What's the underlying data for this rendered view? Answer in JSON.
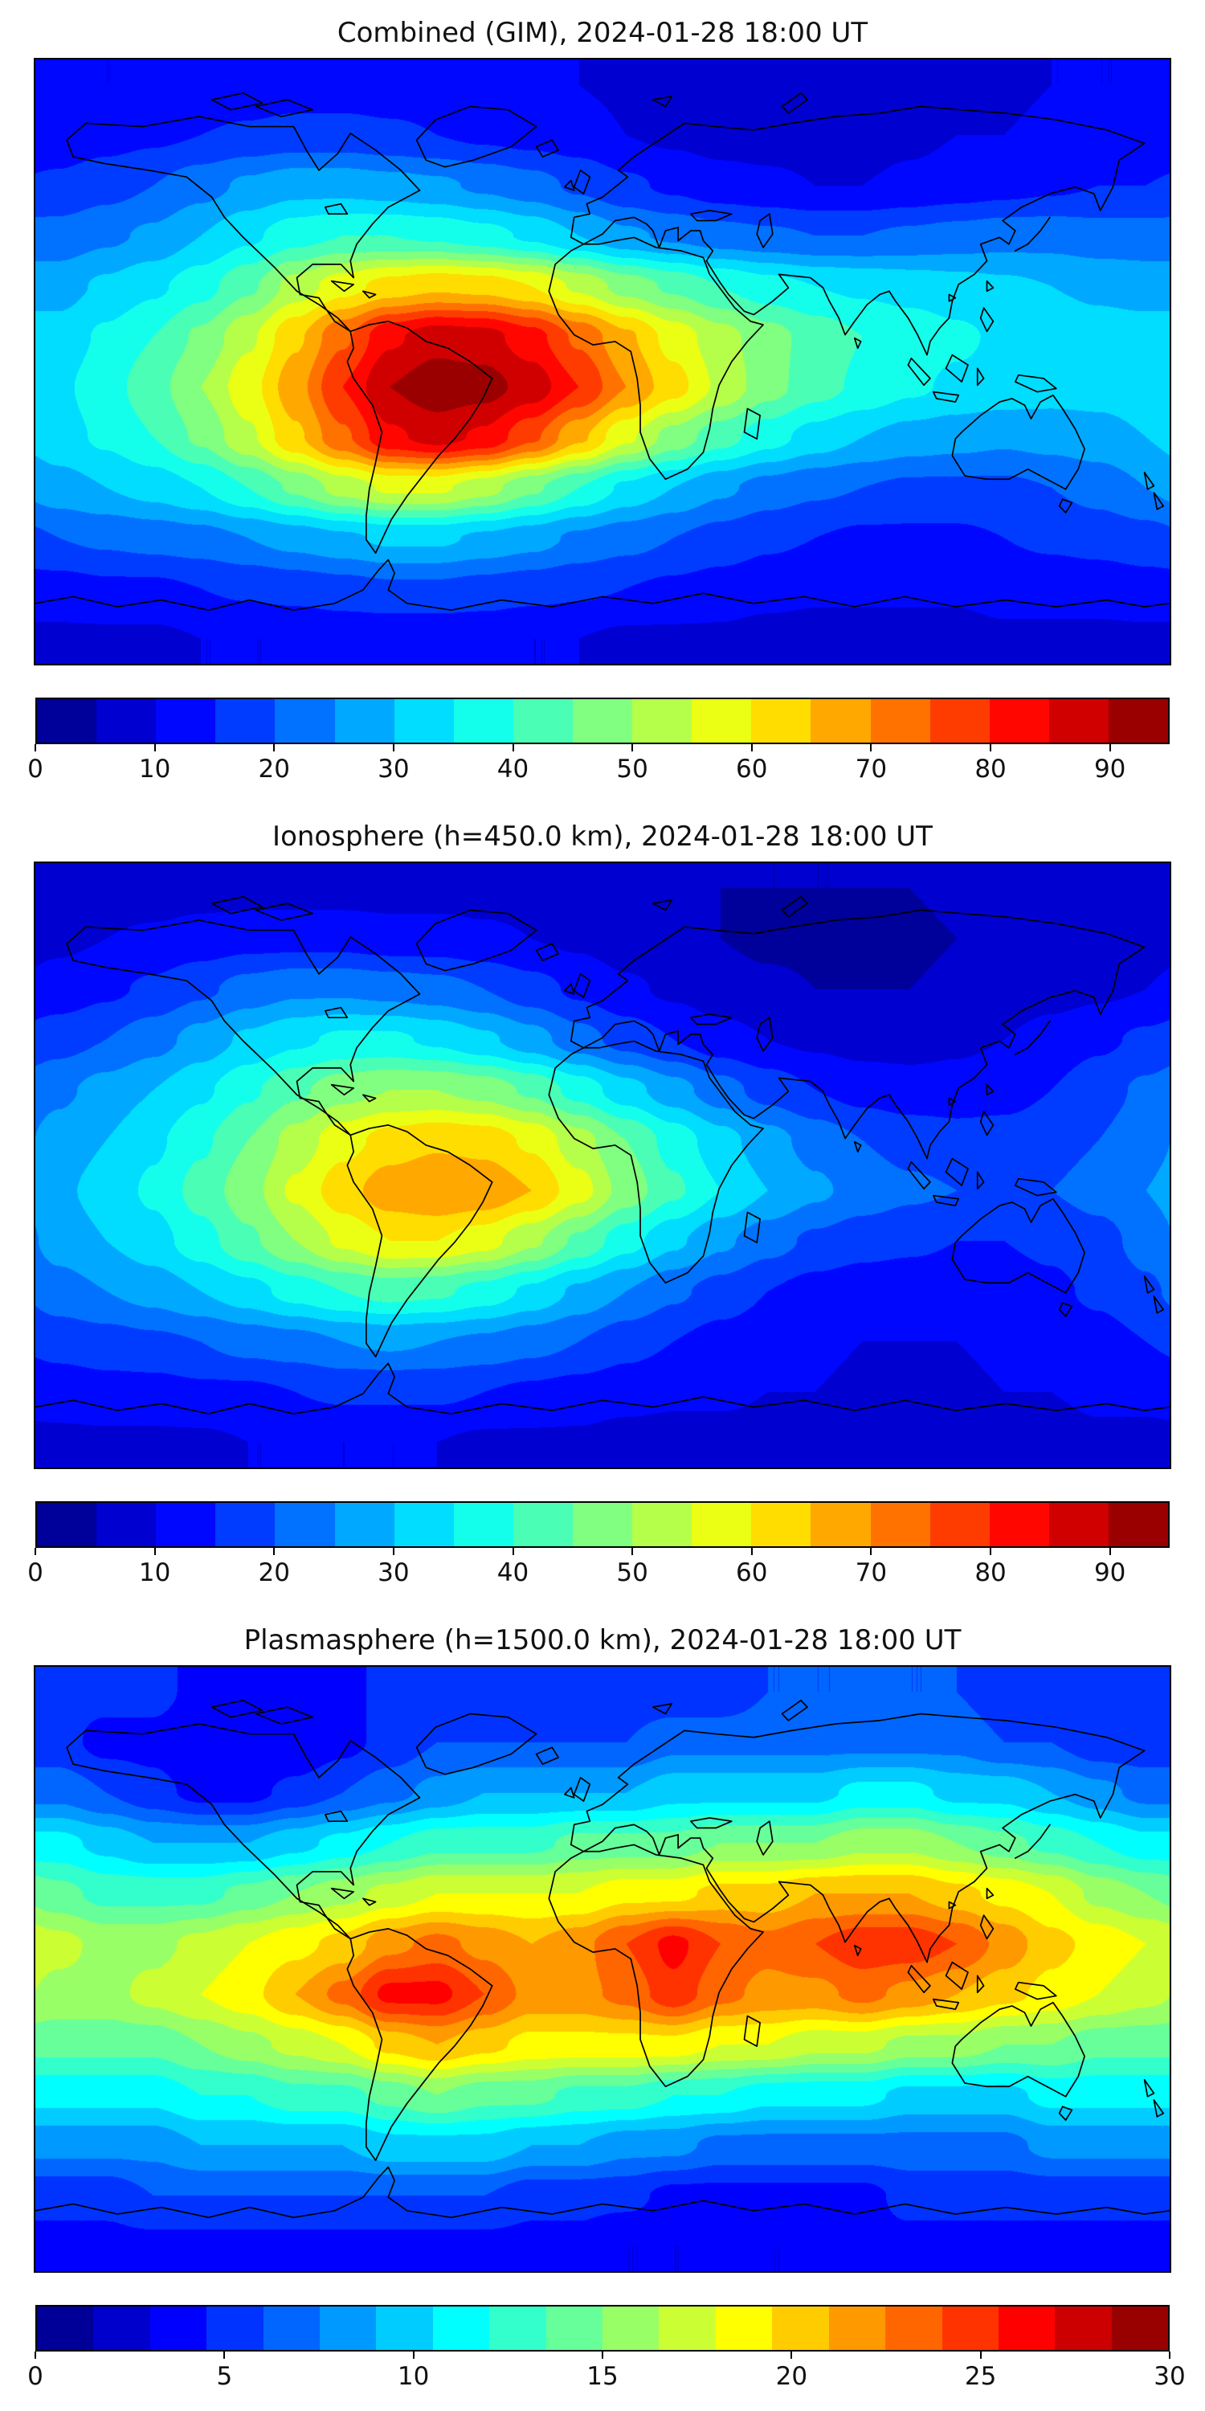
{
  "chart_data": [
    {
      "type": "heatmap",
      "title": "Combined (GIM), 2024-01-28 18:00 UT",
      "projection": "equirectangular",
      "lon_range": [
        -180,
        180
      ],
      "lat_range": [
        -90,
        90
      ],
      "colormap": "jet",
      "levels": {
        "min": 0,
        "max": 95,
        "step": 5
      },
      "colorbar_ticks": [
        0,
        10,
        20,
        30,
        40,
        50,
        60,
        70,
        80,
        90
      ],
      "colorbar_position": "bottom",
      "grid": {
        "lons": [
          -172.5,
          -157.5,
          -142.5,
          -127.5,
          -112.5,
          -97.5,
          -82.5,
          -67.5,
          -52.5,
          -37.5,
          -22.5,
          -7.5,
          7.5,
          22.5,
          37.5,
          52.5,
          67.5,
          82.5,
          97.5,
          112.5,
          127.5,
          142.5,
          157.5,
          172.5
        ],
        "lats": [
          82.5,
          67.5,
          52.5,
          37.5,
          22.5,
          7.5,
          -7.5,
          -22.5,
          -37.5,
          -52.5,
          -67.5,
          -82.5
        ],
        "values": [
          [
            10,
            10,
            10,
            10,
            11,
            12,
            12,
            12,
            12,
            12,
            11,
            10,
            9,
            8,
            8,
            8,
            8,
            8,
            9,
            9,
            9,
            10,
            10,
            10
          ],
          [
            12,
            13,
            14,
            15,
            16,
            17,
            17,
            16,
            15,
            14,
            13,
            12,
            10,
            9,
            8,
            8,
            8,
            8,
            9,
            10,
            10,
            11,
            11,
            12
          ],
          [
            16,
            18,
            20,
            23,
            26,
            28,
            28,
            27,
            26,
            24,
            22,
            19,
            16,
            14,
            12,
            11,
            10,
            10,
            11,
            12,
            13,
            14,
            15,
            15
          ],
          [
            22,
            24,
            26,
            30,
            34,
            38,
            40,
            40,
            39,
            37,
            34,
            30,
            26,
            24,
            22,
            21,
            20,
            20,
            21,
            22,
            23,
            23,
            22,
            22
          ],
          [
            28,
            31,
            34,
            38,
            44,
            52,
            58,
            62,
            64,
            63,
            60,
            54,
            48,
            44,
            40,
            37,
            35,
            34,
            33,
            32,
            31,
            30,
            29,
            28
          ],
          [
            32,
            36,
            40,
            46,
            54,
            64,
            74,
            84,
            88,
            87,
            82,
            74,
            66,
            58,
            52,
            47,
            43,
            40,
            38,
            36,
            34,
            33,
            32,
            32
          ],
          [
            34,
            38,
            43,
            50,
            58,
            68,
            80,
            90,
            93,
            92,
            88,
            80,
            70,
            62,
            54,
            47,
            42,
            39,
            36,
            34,
            33,
            32,
            32,
            33
          ],
          [
            33,
            36,
            40,
            46,
            54,
            64,
            74,
            84,
            87,
            84,
            76,
            66,
            56,
            48,
            42,
            37,
            33,
            30,
            28,
            27,
            26,
            27,
            28,
            30
          ],
          [
            28,
            30,
            32,
            35,
            40,
            46,
            52,
            56,
            56,
            52,
            46,
            40,
            34,
            30,
            26,
            23,
            21,
            20,
            19,
            19,
            19,
            20,
            22,
            25
          ],
          [
            20,
            21,
            22,
            23,
            25,
            27,
            29,
            31,
            31,
            29,
            27,
            24,
            22,
            20,
            18,
            16,
            15,
            14,
            14,
            14,
            15,
            16,
            17,
            18
          ],
          [
            13,
            14,
            14,
            15,
            16,
            17,
            18,
            19,
            19,
            18,
            17,
            16,
            15,
            14,
            13,
            12,
            11,
            11,
            11,
            11,
            12,
            12,
            12,
            13
          ],
          [
            9,
            9,
            9,
            10,
            10,
            10,
            11,
            11,
            11,
            11,
            10,
            10,
            9,
            9,
            9,
            8,
            8,
            8,
            8,
            8,
            9,
            9,
            9,
            9
          ]
        ]
      }
    },
    {
      "type": "heatmap",
      "title": "Ionosphere (h=450.0 km), 2024-01-28 18:00 UT",
      "projection": "equirectangular",
      "lon_range": [
        -180,
        180
      ],
      "lat_range": [
        -90,
        90
      ],
      "colormap": "jet",
      "levels": {
        "min": 0,
        "max": 95,
        "step": 5
      },
      "colorbar_ticks": [
        0,
        10,
        20,
        30,
        40,
        50,
        60,
        70,
        80,
        90
      ],
      "colorbar_position": "bottom",
      "grid": {
        "lons": [
          -172.5,
          -157.5,
          -142.5,
          -127.5,
          -112.5,
          -97.5,
          -82.5,
          -67.5,
          -52.5,
          -37.5,
          -22.5,
          -7.5,
          7.5,
          22.5,
          37.5,
          52.5,
          67.5,
          82.5,
          97.5,
          112.5,
          127.5,
          142.5,
          157.5,
          172.5
        ],
        "lats": [
          82.5,
          67.5,
          52.5,
          37.5,
          22.5,
          7.5,
          -7.5,
          -22.5,
          -37.5,
          -52.5,
          -67.5,
          -82.5
        ],
        "values": [
          [
            7,
            7,
            7,
            8,
            8,
            8,
            8,
            8,
            8,
            8,
            8,
            7,
            6,
            6,
            5,
            5,
            5,
            5,
            5,
            6,
            6,
            6,
            7,
            7
          ],
          [
            9,
            10,
            11,
            12,
            13,
            13,
            13,
            12,
            12,
            11,
            10,
            9,
            7,
            6,
            5,
            4,
            4,
            4,
            4,
            5,
            5,
            6,
            7,
            8
          ],
          [
            12,
            14,
            16,
            19,
            22,
            24,
            24,
            23,
            22,
            20,
            17,
            14,
            11,
            9,
            7,
            6,
            5,
            5,
            5,
            6,
            7,
            8,
            9,
            10
          ],
          [
            18,
            20,
            23,
            27,
            31,
            34,
            36,
            36,
            34,
            31,
            27,
            22,
            18,
            15,
            12,
            10,
            9,
            8,
            8,
            9,
            10,
            12,
            14,
            16
          ],
          [
            24,
            27,
            30,
            34,
            39,
            44,
            48,
            50,
            50,
            48,
            44,
            38,
            32,
            27,
            22,
            18,
            15,
            13,
            12,
            12,
            13,
            15,
            18,
            21
          ],
          [
            27,
            30,
            34,
            39,
            45,
            52,
            58,
            62,
            64,
            63,
            59,
            52,
            45,
            38,
            32,
            27,
            23,
            20,
            18,
            17,
            17,
            18,
            20,
            23
          ],
          [
            29,
            32,
            36,
            42,
            48,
            56,
            63,
            68,
            70,
            69,
            65,
            57,
            48,
            41,
            35,
            30,
            26,
            23,
            21,
            20,
            19,
            20,
            22,
            25
          ],
          [
            27,
            30,
            33,
            38,
            44,
            50,
            56,
            60,
            60,
            57,
            51,
            44,
            37,
            31,
            26,
            22,
            19,
            17,
            16,
            15,
            15,
            16,
            18,
            22
          ],
          [
            23,
            25,
            27,
            30,
            33,
            37,
            40,
            42,
            41,
            38,
            34,
            29,
            25,
            21,
            18,
            15,
            13,
            12,
            12,
            12,
            13,
            14,
            16,
            19
          ],
          [
            17,
            18,
            19,
            20,
            22,
            23,
            25,
            26,
            25,
            24,
            22,
            20,
            17,
            15,
            13,
            12,
            11,
            10,
            10,
            10,
            11,
            12,
            13,
            15
          ],
          [
            12,
            13,
            13,
            14,
            14,
            15,
            16,
            16,
            16,
            15,
            14,
            13,
            12,
            11,
            11,
            10,
            10,
            9,
            9,
            9,
            10,
            10,
            11,
            11
          ],
          [
            9,
            9,
            9,
            9,
            10,
            10,
            10,
            10,
            10,
            9,
            9,
            9,
            8,
            8,
            8,
            8,
            8,
            8,
            8,
            8,
            8,
            8,
            9,
            9
          ]
        ]
      }
    },
    {
      "type": "heatmap",
      "title": "Plasmasphere (h=1500.0 km), 2024-01-28 18:00 UT",
      "projection": "equirectangular",
      "lon_range": [
        -180,
        180
      ],
      "lat_range": [
        -90,
        90
      ],
      "colormap": "jet",
      "levels": {
        "min": 0,
        "max": 30,
        "step": 1.5
      },
      "colorbar_ticks": [
        0,
        5,
        10,
        15,
        20,
        25,
        30
      ],
      "colorbar_position": "bottom",
      "grid": {
        "lons": [
          -172.5,
          -157.5,
          -142.5,
          -127.5,
          -112.5,
          -97.5,
          -82.5,
          -67.5,
          -52.5,
          -37.5,
          -22.5,
          -7.5,
          7.5,
          22.5,
          37.5,
          52.5,
          67.5,
          82.5,
          97.5,
          112.5,
          127.5,
          142.5,
          157.5,
          172.5
        ],
        "lats": [
          82.5,
          67.5,
          52.5,
          37.5,
          22.5,
          7.5,
          -7.5,
          -22.5,
          -37.5,
          -52.5,
          -67.5,
          -82.5
        ],
        "values": [
          [
            5,
            5,
            5,
            4,
            4,
            4,
            4,
            5,
            5,
            5,
            5,
            5,
            5,
            5,
            5,
            6,
            6,
            6,
            6,
            6,
            5,
            5,
            5,
            5
          ],
          [
            5,
            4,
            4,
            3,
            3,
            3,
            4,
            5,
            6,
            6,
            6,
            6,
            6,
            7,
            7,
            7,
            7,
            7,
            7,
            7,
            6,
            6,
            5,
            5
          ],
          [
            7,
            6,
            5,
            4,
            4,
            5,
            6,
            7,
            8,
            9,
            9,
            9,
            9,
            10,
            10,
            10,
            10,
            11,
            11,
            10,
            10,
            9,
            8,
            7
          ],
          [
            11,
            10,
            9,
            9,
            9,
            10,
            11,
            12,
            13,
            13,
            13,
            14,
            14,
            14,
            15,
            15,
            15,
            16,
            16,
            15,
            14,
            13,
            12,
            11
          ],
          [
            14,
            13,
            13,
            13,
            14,
            15,
            16,
            17,
            18,
            18,
            18,
            18,
            19,
            19,
            20,
            20,
            21,
            21,
            21,
            20,
            19,
            18,
            16,
            15
          ],
          [
            17,
            16,
            16,
            17,
            18,
            19,
            20,
            22,
            23,
            22,
            21,
            22,
            24,
            26,
            24,
            23,
            24,
            25,
            25,
            24,
            22,
            20,
            19,
            18
          ],
          [
            16,
            16,
            17,
            18,
            19,
            21,
            23,
            26,
            26,
            24,
            22,
            22,
            23,
            25,
            23,
            22,
            22,
            23,
            22,
            21,
            20,
            19,
            18,
            17
          ],
          [
            14,
            14,
            14,
            15,
            16,
            17,
            18,
            20,
            21,
            20,
            19,
            19,
            19,
            19,
            18,
            18,
            17,
            17,
            16,
            16,
            15,
            15,
            14,
            14
          ],
          [
            11,
            11,
            11,
            12,
            12,
            13,
            13,
            14,
            15,
            14,
            14,
            13,
            13,
            12,
            12,
            11,
            11,
            11,
            10,
            10,
            10,
            11,
            11,
            11
          ],
          [
            8,
            8,
            8,
            9,
            9,
            9,
            9,
            10,
            10,
            10,
            9,
            9,
            8,
            8,
            7,
            7,
            7,
            7,
            7,
            7,
            7,
            8,
            8,
            8
          ],
          [
            5,
            5,
            6,
            6,
            6,
            6,
            6,
            6,
            6,
            6,
            5,
            5,
            5,
            4,
            4,
            4,
            4,
            4,
            5,
            5,
            5,
            5,
            5,
            5
          ],
          [
            4,
            4,
            4,
            4,
            4,
            4,
            4,
            4,
            4,
            4,
            4,
            4,
            3,
            3,
            3,
            3,
            3,
            4,
            4,
            4,
            4,
            4,
            4,
            4
          ]
        ]
      }
    }
  ]
}
